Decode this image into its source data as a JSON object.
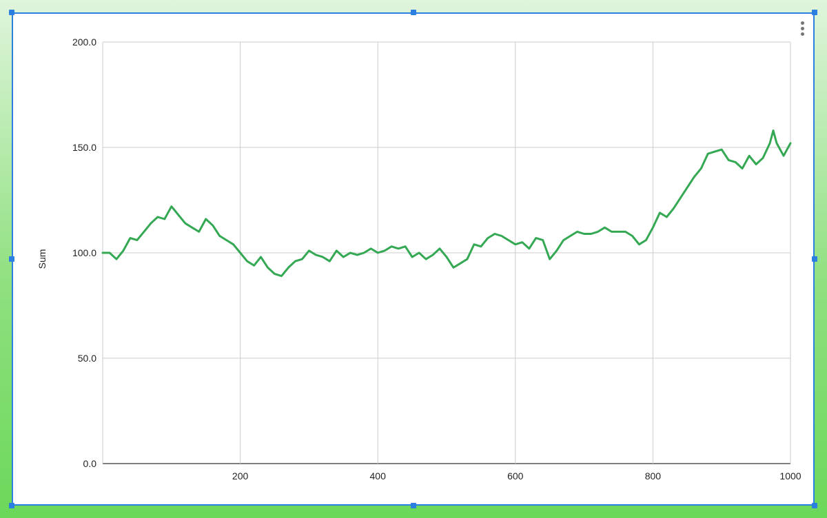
{
  "chart_data": {
    "type": "line",
    "title": "",
    "xlabel": "",
    "ylabel": "Sum",
    "xlim": [
      0,
      1000
    ],
    "ylim": [
      0,
      200
    ],
    "x_ticks": [
      200,
      400,
      600,
      800,
      1000
    ],
    "y_ticks": [
      0,
      50,
      100,
      150,
      200
    ],
    "y_tick_labels": [
      "0.0",
      "50.0",
      "100.0",
      "150.0",
      "200.0"
    ],
    "x_tick_labels": [
      "200",
      "400",
      "600",
      "800",
      "1000"
    ],
    "grid": true,
    "series": [
      {
        "color": "#34a853",
        "x": [
          0,
          10,
          20,
          30,
          40,
          50,
          60,
          70,
          80,
          90,
          100,
          110,
          120,
          130,
          140,
          150,
          160,
          170,
          180,
          190,
          200,
          210,
          220,
          230,
          240,
          250,
          260,
          270,
          280,
          290,
          300,
          310,
          320,
          330,
          340,
          350,
          360,
          370,
          380,
          390,
          400,
          410,
          420,
          430,
          440,
          450,
          460,
          470,
          480,
          490,
          500,
          510,
          520,
          530,
          540,
          550,
          560,
          570,
          580,
          590,
          600,
          610,
          620,
          630,
          640,
          650,
          660,
          670,
          680,
          690,
          700,
          710,
          720,
          730,
          740,
          750,
          760,
          770,
          780,
          790,
          800,
          810,
          820,
          830,
          840,
          850,
          860,
          870,
          880,
          890,
          900,
          910,
          920,
          930,
          940,
          950,
          960,
          970,
          975,
          980,
          990,
          1000
        ],
        "values": [
          100,
          100,
          97,
          101,
          107,
          106,
          110,
          114,
          117,
          116,
          122,
          118,
          114,
          112,
          110,
          116,
          113,
          108,
          106,
          104,
          100,
          96,
          94,
          98,
          93,
          90,
          89,
          93,
          96,
          97,
          101,
          99,
          98,
          96,
          101,
          98,
          100,
          99,
          100,
          102,
          100,
          101,
          103,
          102,
          103,
          98,
          100,
          97,
          99,
          102,
          98,
          93,
          95,
          97,
          104,
          103,
          107,
          109,
          108,
          106,
          104,
          105,
          102,
          107,
          106,
          97,
          101,
          106,
          108,
          110,
          109,
          109,
          110,
          112,
          110,
          110,
          110,
          108,
          104,
          106,
          112,
          119,
          117,
          121,
          126,
          131,
          136,
          140,
          147,
          148,
          149,
          144,
          143,
          140,
          146,
          142,
          145,
          152,
          158,
          152,
          146,
          152
        ]
      }
    ]
  },
  "ui": {
    "menu_icon": "more-vert-icon",
    "selection_color": "#2a7fe0"
  }
}
